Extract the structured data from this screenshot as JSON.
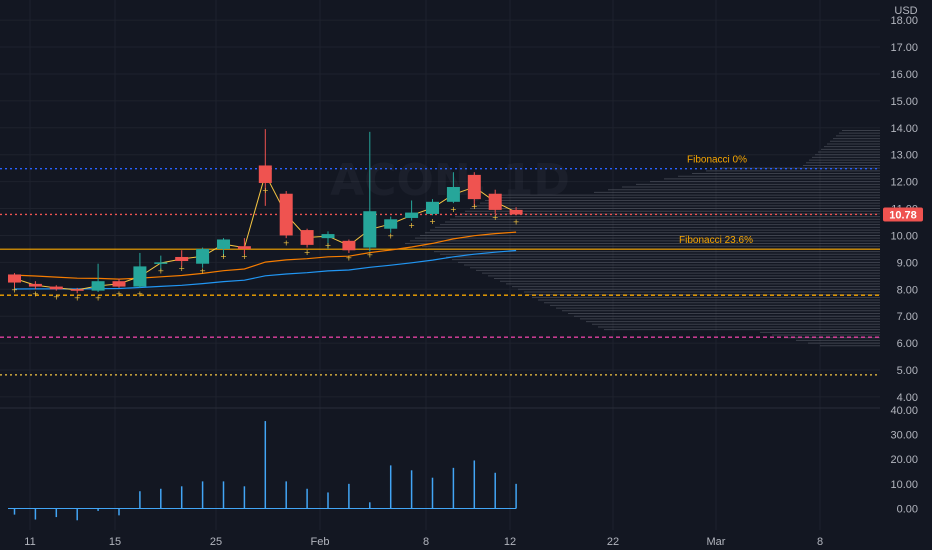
{
  "currency": "USD",
  "watermark": "ACON, 1D",
  "last_price_label": "10.78",
  "colors": {
    "background": "#131722",
    "up": "#26a69a",
    "down": "#ef5350",
    "wick": "#d1d4dc",
    "grid": "#1e222d",
    "fib0": "#f7a600",
    "fib236": "#f7a600",
    "fib_line_blue": "#2962ff",
    "ema_orange": "#f57c00",
    "ema_blue": "#2196f3",
    "ma_yellow": "#f5c542",
    "vol": "#42a5f5",
    "profile": "#5d606b"
  },
  "fibonacci": [
    {
      "label": "Fibonacci 0%",
      "price": 12.48
    },
    {
      "label": "Fibonacci 23.6%",
      "price": 9.49
    }
  ],
  "chart_data": {
    "type": "candlestick",
    "price_axis_ticks": [
      "4.00",
      "5.00",
      "6.00",
      "7.00",
      "8.00",
      "9.00",
      "10.00",
      "11.00",
      "12.00",
      "13.00",
      "14.00",
      "15.00",
      "16.00",
      "17.00",
      "18.00"
    ],
    "volume_axis_ticks": [
      "0.00",
      "10.00",
      "20.00",
      "30.00",
      "40.00"
    ],
    "x_labels": [
      "11",
      "15",
      "25",
      "Feb",
      "8",
      "12",
      "22",
      "Mar",
      "8"
    ],
    "ylim": [
      3.7,
      18.6
    ],
    "volume_ylim": [
      -5.5,
      40
    ],
    "horizontal_levels": [
      {
        "price": 12.48,
        "style": "dotted",
        "color": "#2962ff"
      },
      {
        "price": 9.49,
        "style": "solid",
        "color": "#f7a600"
      },
      {
        "price": 7.78,
        "style": "dashed",
        "color": "#f7a600"
      },
      {
        "price": 6.22,
        "style": "dashed",
        "color": "#e040a0"
      },
      {
        "price": 4.82,
        "style": "dotted",
        "color": "#f5c542"
      },
      {
        "price": 10.78,
        "style": "dotted",
        "color": "#ef5350"
      }
    ],
    "candles": [
      {
        "x": 0,
        "o": 8.55,
        "h": 8.6,
        "l": 8.05,
        "c": 8.25,
        "v": -2.5
      },
      {
        "x": 1,
        "o": 8.2,
        "h": 8.3,
        "l": 8.0,
        "c": 8.1,
        "v": -4.5
      },
      {
        "x": 2,
        "o": 8.1,
        "h": 8.15,
        "l": 7.95,
        "c": 8.0,
        "v": -3.5
      },
      {
        "x": 3,
        "o": 8.0,
        "h": 8.05,
        "l": 7.85,
        "c": 7.95,
        "v": -4.8
      },
      {
        "x": 4,
        "o": 7.95,
        "h": 8.95,
        "l": 7.9,
        "c": 8.3,
        "v": -1.0
      },
      {
        "x": 5,
        "o": 8.3,
        "h": 8.4,
        "l": 8.05,
        "c": 8.1,
        "v": -2.8
      },
      {
        "x": 6,
        "o": 8.1,
        "h": 9.35,
        "l": 8.05,
        "c": 8.85,
        "v": 7.0
      },
      {
        "x": 7,
        "o": 8.95,
        "h": 9.25,
        "l": 8.7,
        "c": 9.0,
        "v": 8.0
      },
      {
        "x": 8,
        "o": 9.2,
        "h": 9.45,
        "l": 8.85,
        "c": 9.05,
        "v": 9.0
      },
      {
        "x": 9,
        "o": 8.95,
        "h": 9.55,
        "l": 8.8,
        "c": 9.5,
        "v": 11.0
      },
      {
        "x": 10,
        "o": 9.5,
        "h": 9.9,
        "l": 9.2,
        "c": 9.85,
        "v": 11.0
      },
      {
        "x": 11,
        "o": 9.6,
        "h": 9.9,
        "l": 9.3,
        "c": 9.5,
        "v": 9.0
      },
      {
        "x": 12,
        "o": 12.6,
        "h": 13.95,
        "l": 11.1,
        "c": 11.95,
        "v": 35.5
      },
      {
        "x": 13,
        "o": 11.55,
        "h": 11.65,
        "l": 9.9,
        "c": 10.0,
        "v": 11.0
      },
      {
        "x": 14,
        "o": 10.2,
        "h": 10.25,
        "l": 9.55,
        "c": 9.65,
        "v": 8.0
      },
      {
        "x": 15,
        "o": 9.9,
        "h": 10.15,
        "l": 9.5,
        "c": 10.05,
        "v": 6.5
      },
      {
        "x": 16,
        "o": 9.8,
        "h": 9.85,
        "l": 9.35,
        "c": 9.45,
        "v": 10.0
      },
      {
        "x": 17,
        "o": 9.55,
        "h": 13.85,
        "l": 9.4,
        "c": 10.9,
        "v": 2.5
      },
      {
        "x": 18,
        "o": 10.25,
        "h": 10.7,
        "l": 10.1,
        "c": 10.6,
        "v": 17.5
      },
      {
        "x": 19,
        "o": 10.65,
        "h": 11.3,
        "l": 10.55,
        "c": 10.85,
        "v": 15.5
      },
      {
        "x": 20,
        "o": 10.8,
        "h": 11.35,
        "l": 10.75,
        "c": 11.25,
        "v": 12.5
      },
      {
        "x": 21,
        "o": 11.25,
        "h": 12.35,
        "l": 11.2,
        "c": 11.8,
        "v": 16.5
      },
      {
        "x": 22,
        "o": 12.25,
        "h": 12.35,
        "l": 11.05,
        "c": 11.35,
        "v": 19.5
      },
      {
        "x": 23,
        "o": 11.55,
        "h": 11.7,
        "l": 10.8,
        "c": 10.95,
        "v": 14.5
      },
      {
        "x": 24,
        "o": 10.95,
        "h": 11.05,
        "l": 10.75,
        "c": 10.78,
        "v": 10.0
      }
    ]
  }
}
